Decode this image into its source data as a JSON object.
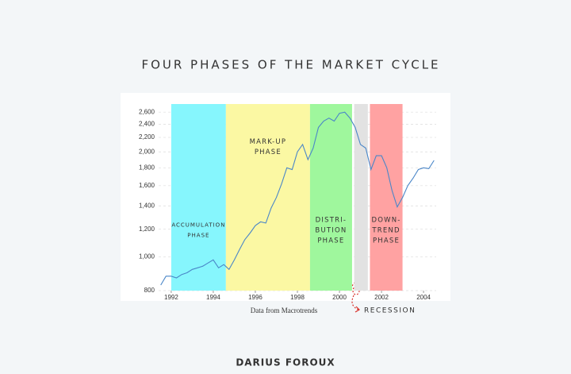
{
  "chart_data": {
    "type": "line",
    "title": "FOUR PHASES OF THE MARKET CYCLE",
    "source": "Data from Macrotrends",
    "author": "DARIUS FOROUX",
    "annotation": "RECESSION",
    "log_scale": true,
    "grid": true,
    "xlim": [
      1991.4,
      2004.6
    ],
    "xticks": [
      1992,
      1994,
      1996,
      1998,
      2000,
      2002,
      2004
    ],
    "ylim": [
      800,
      2700
    ],
    "yticks": [
      {
        "value": 800,
        "label": "800"
      },
      {
        "value": 1000,
        "label": "1,000"
      },
      {
        "value": 1200,
        "label": "1,200"
      },
      {
        "value": 1400,
        "label": "1,400"
      },
      {
        "value": 1600,
        "label": "1,600"
      },
      {
        "value": 1800,
        "label": "1,800"
      },
      {
        "value": 2000,
        "label": "2,000"
      },
      {
        "value": 2200,
        "label": "2,200"
      },
      {
        "value": 2400,
        "label": "2,400"
      },
      {
        "value": 2600,
        "label": "2,600"
      }
    ],
    "bands": [
      {
        "label": [
          "ACCUMULATION",
          "PHASE"
        ],
        "start": 1992.0,
        "end": 1994.6,
        "color": "#86f6fd"
      },
      {
        "label": [
          "MARK-UP",
          "PHASE"
        ],
        "start": 1994.6,
        "end": 1998.6,
        "color": "#fbf8a3"
      },
      {
        "label": [
          "DISTRI-",
          "BUTION",
          "PHASE"
        ],
        "start": 1998.6,
        "end": 2000.6,
        "color": "#9ff79d"
      },
      {
        "start": 2000.7,
        "end": 2001.35,
        "color": "#e2e2e2"
      },
      {
        "label": [
          "DOWN-",
          "TREND",
          "PHASE"
        ],
        "start": 2001.45,
        "end": 2003.0,
        "color": "#ffa2a2"
      }
    ],
    "line_color": "#4a86c8",
    "x": [
      1991.5,
      1991.75,
      1992.0,
      1992.25,
      1992.5,
      1992.75,
      1993.0,
      1993.25,
      1993.5,
      1993.75,
      1994.0,
      1994.25,
      1994.5,
      1994.75,
      1995.0,
      1995.25,
      1995.5,
      1995.75,
      1996.0,
      1996.25,
      1996.5,
      1996.75,
      1997.0,
      1997.25,
      1997.5,
      1997.75,
      1998.0,
      1998.25,
      1998.5,
      1998.75,
      1999.0,
      1999.25,
      1999.5,
      1999.75,
      2000.0,
      2000.25,
      2000.5,
      2000.75,
      2001.0,
      2001.25,
      2001.5,
      2001.75,
      2002.0,
      2002.25,
      2002.5,
      2002.75,
      2003.0,
      2003.25,
      2003.5,
      2003.75,
      2004.0,
      2004.25,
      2004.5
    ],
    "values": [
      830,
      880,
      880,
      870,
      890,
      900,
      920,
      930,
      940,
      960,
      980,
      930,
      950,
      920,
      980,
      1050,
      1120,
      1170,
      1230,
      1260,
      1250,
      1380,
      1480,
      1620,
      1800,
      1780,
      2000,
      2100,
      1900,
      2050,
      2350,
      2450,
      2500,
      2450,
      2580,
      2600,
      2500,
      2350,
      2100,
      2050,
      1780,
      1950,
      1950,
      1800,
      1550,
      1390,
      1480,
      1600,
      1680,
      1780,
      1800,
      1790,
      1890
    ]
  }
}
